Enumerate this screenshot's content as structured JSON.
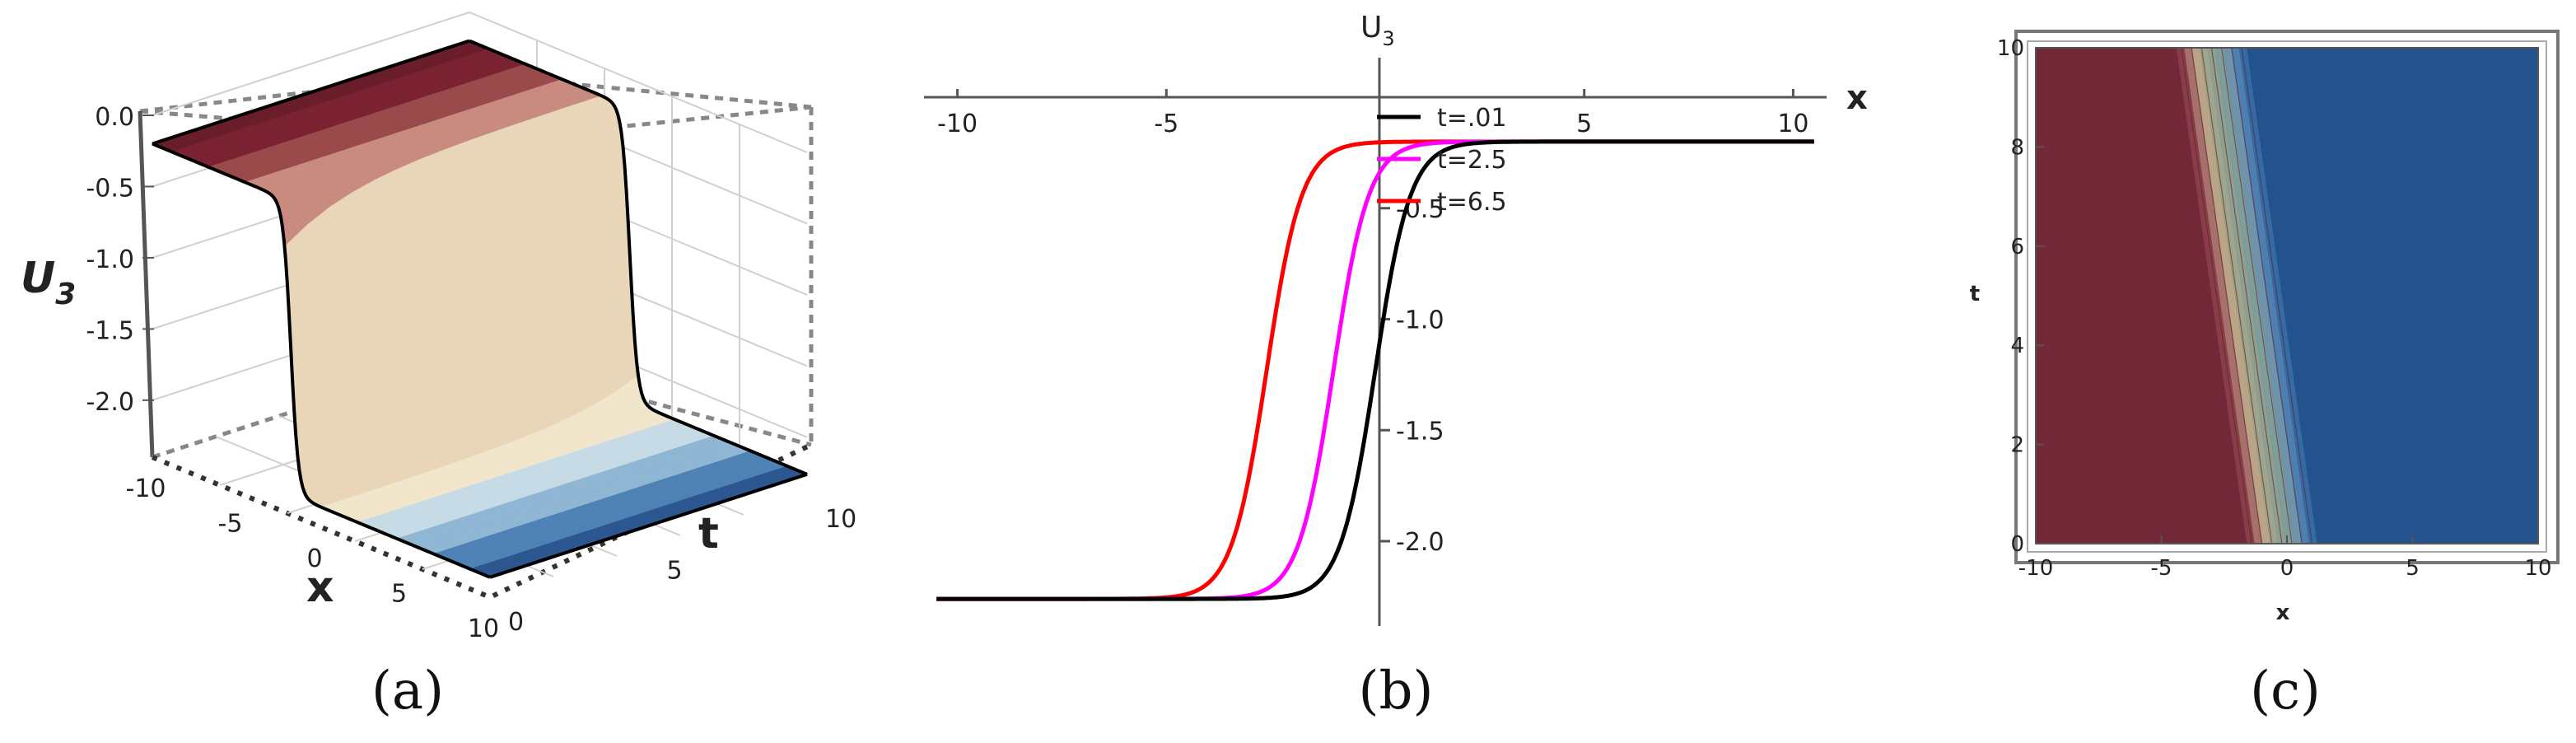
{
  "panels": {
    "a": {
      "label": "(a)"
    },
    "b": {
      "label": "(b)"
    },
    "c": {
      "label": "(c)"
    }
  },
  "colors": {
    "surface_dark_red": "#7b2333",
    "surface_mid": "#efe2c4",
    "surface_blue": "#2c5790",
    "black_curve": "#000000",
    "magenta_curve": "#ff00ff",
    "red_curve": "#ff0000"
  },
  "chart_data": [
    {
      "id": "panel-a",
      "type": "surface3d",
      "xlabel": "x",
      "ylabel": "t",
      "zlabel_main": "U",
      "zlabel_sub": "3",
      "xlim": [
        -10,
        10
      ],
      "ylim": [
        0,
        10
      ],
      "zlim": [
        -2.4,
        0.0
      ],
      "x_ticks": [
        "-10",
        "-5",
        "0",
        "5",
        "10"
      ],
      "y_ticks": [
        "0",
        "5",
        "10"
      ],
      "z_ticks": [
        "0.0",
        "-0.5",
        "-1.0",
        "-1.5",
        "-2.0"
      ],
      "z_low": -2.26,
      "z_high": -0.2,
      "front_center": -1.8,
      "back_center": -0.5
    },
    {
      "id": "panel-b",
      "type": "line",
      "xlabel": "x",
      "ylabel_main": "U",
      "ylabel_sub": "3",
      "xlim": [
        -10.8,
        10.8
      ],
      "ylim": [
        -2.4,
        0.15
      ],
      "x_ticks": [
        "-10",
        "-5",
        "5",
        "10"
      ],
      "y_ticks": [
        "-0.5",
        "-1.0",
        "-1.5",
        "-2.0"
      ],
      "low_value": -2.26,
      "high_value": -0.2,
      "legend_placement": "upper-center",
      "series": [
        {
          "name": "t=.01",
          "color": "#000000",
          "center": 0.0,
          "width": 0.28
        },
        {
          "name": "t=2.5",
          "color": "#ff00ff",
          "center": -1.0,
          "width": 0.28
        },
        {
          "name": "t=6.5",
          "color": "#ff0000",
          "center": -2.6,
          "width": 0.28
        }
      ]
    },
    {
      "id": "panel-c",
      "type": "contour",
      "xlabel": "x",
      "ylabel": "t",
      "xlim": [
        -10,
        10
      ],
      "ylim": [
        0,
        10
      ],
      "x_ticks": [
        "-10",
        "-5",
        "0",
        "5",
        "10"
      ],
      "y_ticks": [
        "0",
        "2",
        "4",
        "6",
        "8",
        "10"
      ],
      "front_center": -0.2,
      "front_slope": -0.28,
      "front_halfwidth": 1.4
    }
  ]
}
